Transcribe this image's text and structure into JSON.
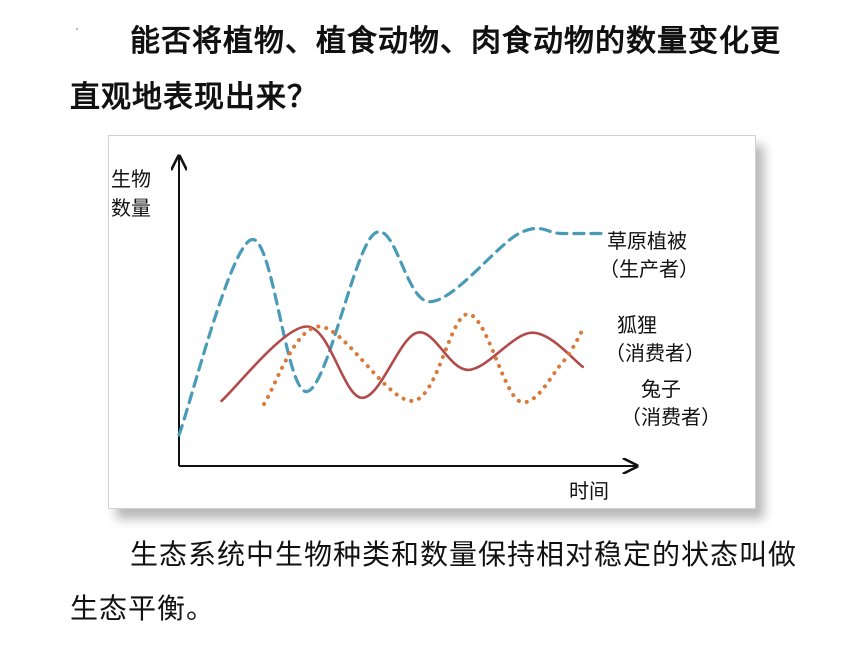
{
  "heading": "能否将植物、植食动物、肉食动物的数量变化更直观地表现出来？",
  "paragraph": "生态系统中生物种类和数量保持相对稳定的状态叫做生态平衡。",
  "chart_data": {
    "type": "line",
    "title": "",
    "ylabel": [
      "生物",
      "数量"
    ],
    "xlabel": "时间",
    "grid": false,
    "x": [
      0,
      1,
      2,
      3,
      4,
      5,
      6,
      7,
      8,
      9,
      10
    ],
    "series": [
      {
        "name": [
          "草原植被",
          "（生产者）"
        ],
        "style": "dashed",
        "color": "#4a9bb8",
        "x": [
          0,
          1.7,
          3.0,
          4.6,
          5.9,
          8.0,
          9.0,
          10.0
        ],
        "values": [
          1.0,
          7.3,
          2.4,
          7.5,
          5.3,
          7.5,
          7.5,
          7.5
        ]
      },
      {
        "name": [
          "狐狸",
          "（消费者）"
        ],
        "style": "solid",
        "color": "#b24a4a",
        "x": [
          1.0,
          3.0,
          4.3,
          5.6,
          6.8,
          8.3,
          9.5
        ],
        "values": [
          2.1,
          4.5,
          2.2,
          4.3,
          3.1,
          4.3,
          3.2
        ]
      },
      {
        "name": [
          "兔子",
          "（消费者）"
        ],
        "style": "dotted",
        "color": "#d9793a",
        "x": [
          2.0,
          3.3,
          5.5,
          6.8,
          8.0,
          9.0,
          9.5
        ],
        "values": [
          2.0,
          4.5,
          2.1,
          4.9,
          2.1,
          3.3,
          4.4
        ]
      }
    ],
    "ylim": [
      0,
      10
    ],
    "xlim": [
      0,
      10
    ]
  },
  "colors": {
    "vegetation": "#4a9bb8",
    "fox": "#b24a4a",
    "rabbit": "#d9793a"
  }
}
